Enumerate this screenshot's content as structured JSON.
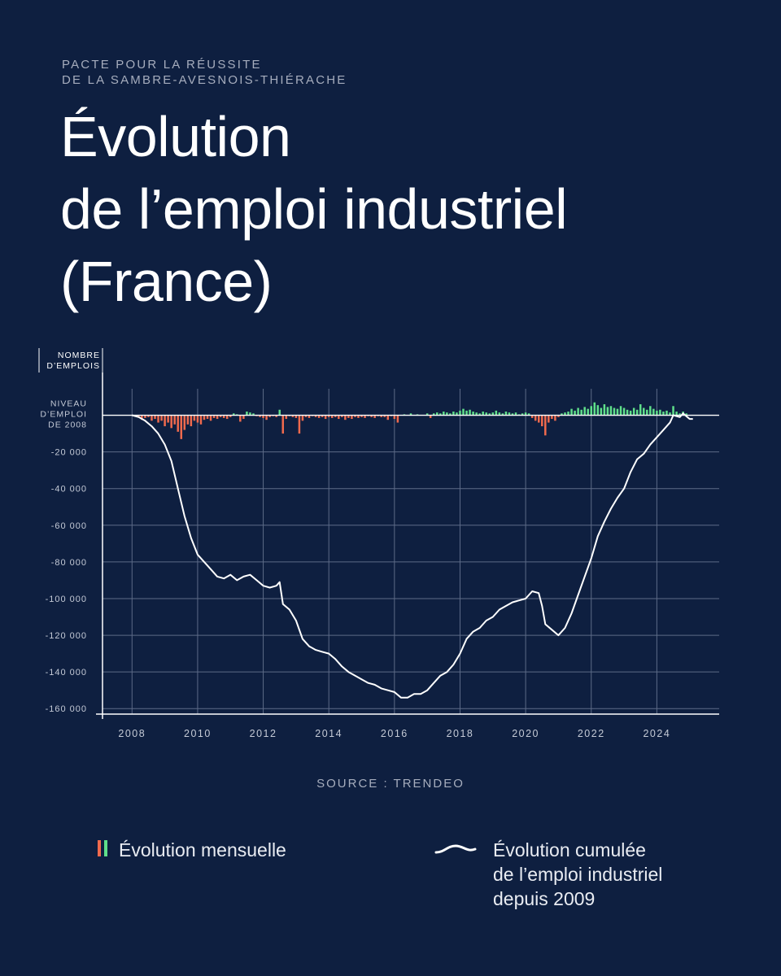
{
  "header": {
    "supertitle_lines": [
      "PACTE POUR LA RÉUSSITE",
      "DE LA SAMBRE-AVESNOIS-THIÉRACHE"
    ],
    "title_lines": [
      "Évolution",
      "de l’emploi industriel",
      "(France)"
    ]
  },
  "source": "SOURCE : TRENDEO",
  "legend": {
    "monthly": "Évolution mensuelle",
    "cumulative_lines": [
      "Évolution cumulée",
      "de l’emploi industriel",
      "depuis 2009"
    ]
  },
  "colors": {
    "background": "#0e1f40",
    "negative_bar": "#f06a4d",
    "positive_bar": "#5fdf8a",
    "line": "#ffffff",
    "grid": "#5d6b87",
    "muted_text": "#a6adbd"
  },
  "icons": {
    "monthly": "bar-pair-icon",
    "cumulative": "wave-line-icon"
  },
  "chart_data": {
    "type": "line+bar",
    "ylabel_lines": [
      "NOMBRE",
      "D’EMPLOIS"
    ],
    "zero_label_lines": [
      "NIVEAU",
      "D’EMPLOI",
      "DE 2008"
    ],
    "x_ticks": [
      "2008",
      "2010",
      "2012",
      "2014",
      "2016",
      "2018",
      "2020",
      "2022",
      "2024"
    ],
    "y_ticks": [
      "-20 000",
      "-40 000",
      "-60 000",
      "-80 000",
      "-100 000",
      "-120 000",
      "-140 000",
      "-160 000"
    ],
    "y_tick_values": [
      -20000,
      -40000,
      -60000,
      -80000,
      -100000,
      -120000,
      -140000,
      -160000
    ],
    "xlim": [
      2007.1,
      2025.9
    ],
    "ylim": [
      -163000,
      10000
    ],
    "grid": true,
    "series": [
      {
        "name": "Évolution cumulée de l’emploi industriel depuis 2009",
        "kind": "line",
        "points": [
          [
            2008.0,
            0
          ],
          [
            2008.2,
            -1000
          ],
          [
            2008.4,
            -3000
          ],
          [
            2008.6,
            -6000
          ],
          [
            2008.8,
            -10000
          ],
          [
            2009.0,
            -16000
          ],
          [
            2009.2,
            -25000
          ],
          [
            2009.4,
            -40000
          ],
          [
            2009.6,
            -55000
          ],
          [
            2009.8,
            -67000
          ],
          [
            2010.0,
            -76000
          ],
          [
            2010.2,
            -80000
          ],
          [
            2010.4,
            -84000
          ],
          [
            2010.6,
            -88000
          ],
          [
            2010.8,
            -89000
          ],
          [
            2011.0,
            -87000
          ],
          [
            2011.2,
            -90000
          ],
          [
            2011.4,
            -88000
          ],
          [
            2011.6,
            -87000
          ],
          [
            2011.8,
            -90000
          ],
          [
            2012.0,
            -93000
          ],
          [
            2012.2,
            -94000
          ],
          [
            2012.4,
            -93000
          ],
          [
            2012.5,
            -91000
          ],
          [
            2012.6,
            -103000
          ],
          [
            2012.8,
            -106000
          ],
          [
            2013.0,
            -112000
          ],
          [
            2013.2,
            -122000
          ],
          [
            2013.4,
            -126000
          ],
          [
            2013.6,
            -128000
          ],
          [
            2013.8,
            -129000
          ],
          [
            2014.0,
            -130000
          ],
          [
            2014.2,
            -133000
          ],
          [
            2014.4,
            -137000
          ],
          [
            2014.6,
            -140000
          ],
          [
            2014.8,
            -142000
          ],
          [
            2015.0,
            -144000
          ],
          [
            2015.2,
            -146000
          ],
          [
            2015.4,
            -147000
          ],
          [
            2015.6,
            -149000
          ],
          [
            2015.8,
            -150000
          ],
          [
            2016.0,
            -151000
          ],
          [
            2016.2,
            -154000
          ],
          [
            2016.4,
            -154000
          ],
          [
            2016.6,
            -152000
          ],
          [
            2016.8,
            -152000
          ],
          [
            2017.0,
            -150000
          ],
          [
            2017.2,
            -146000
          ],
          [
            2017.4,
            -142000
          ],
          [
            2017.6,
            -140000
          ],
          [
            2017.8,
            -136000
          ],
          [
            2018.0,
            -130000
          ],
          [
            2018.2,
            -122000
          ],
          [
            2018.4,
            -118000
          ],
          [
            2018.6,
            -116000
          ],
          [
            2018.8,
            -112000
          ],
          [
            2019.0,
            -110000
          ],
          [
            2019.2,
            -106000
          ],
          [
            2019.4,
            -104000
          ],
          [
            2019.6,
            -102000
          ],
          [
            2019.8,
            -101000
          ],
          [
            2020.0,
            -100000
          ],
          [
            2020.2,
            -96000
          ],
          [
            2020.4,
            -97000
          ],
          [
            2020.5,
            -104000
          ],
          [
            2020.6,
            -114000
          ],
          [
            2020.8,
            -117000
          ],
          [
            2021.0,
            -120000
          ],
          [
            2021.2,
            -116000
          ],
          [
            2021.4,
            -108000
          ],
          [
            2021.6,
            -98000
          ],
          [
            2021.8,
            -88000
          ],
          [
            2022.0,
            -78000
          ],
          [
            2022.2,
            -66000
          ],
          [
            2022.4,
            -58000
          ],
          [
            2022.6,
            -51000
          ],
          [
            2022.8,
            -45000
          ],
          [
            2023.0,
            -40000
          ],
          [
            2023.2,
            -31000
          ],
          [
            2023.4,
            -24000
          ],
          [
            2023.6,
            -21000
          ],
          [
            2023.8,
            -16000
          ],
          [
            2024.0,
            -12000
          ],
          [
            2024.2,
            -8000
          ],
          [
            2024.4,
            -4000
          ],
          [
            2024.5,
            0
          ],
          [
            2024.7,
            -1000
          ],
          [
            2024.8,
            1000
          ],
          [
            2025.0,
            -2000
          ],
          [
            2025.1,
            -2000
          ]
        ]
      },
      {
        "name": "Évolution mensuelle",
        "kind": "bar",
        "points": [
          [
            2008.2,
            -1000
          ],
          [
            2008.3,
            -2500
          ],
          [
            2008.4,
            -1500
          ],
          [
            2008.5,
            -1000
          ],
          [
            2008.6,
            -3000
          ],
          [
            2008.7,
            -2000
          ],
          [
            2008.8,
            -4000
          ],
          [
            2008.9,
            -3000
          ],
          [
            2009.0,
            -6000
          ],
          [
            2009.1,
            -4000
          ],
          [
            2009.2,
            -7000
          ],
          [
            2009.3,
            -5000
          ],
          [
            2009.4,
            -9000
          ],
          [
            2009.5,
            -13000
          ],
          [
            2009.6,
            -8000
          ],
          [
            2009.7,
            -5000
          ],
          [
            2009.8,
            -6000
          ],
          [
            2009.9,
            -3000
          ],
          [
            2010.0,
            -4000
          ],
          [
            2010.1,
            -5000
          ],
          [
            2010.2,
            -2500
          ],
          [
            2010.3,
            -2000
          ],
          [
            2010.4,
            -3000
          ],
          [
            2010.5,
            -1500
          ],
          [
            2010.6,
            -2000
          ],
          [
            2010.7,
            -1000
          ],
          [
            2010.8,
            -1500
          ],
          [
            2010.9,
            -2000
          ],
          [
            2011.0,
            -1000
          ],
          [
            2011.1,
            1000
          ],
          [
            2011.2,
            500
          ],
          [
            2011.3,
            -3500
          ],
          [
            2011.4,
            -2000
          ],
          [
            2011.5,
            2000
          ],
          [
            2011.6,
            1500
          ],
          [
            2011.7,
            1000
          ],
          [
            2011.8,
            -500
          ],
          [
            2011.9,
            -1000
          ],
          [
            2012.0,
            -1500
          ],
          [
            2012.1,
            -2500
          ],
          [
            2012.2,
            -1000
          ],
          [
            2012.3,
            -500
          ],
          [
            2012.4,
            -1000
          ],
          [
            2012.5,
            3000
          ],
          [
            2012.6,
            -10000
          ],
          [
            2012.7,
            -2000
          ],
          [
            2012.8,
            -500
          ],
          [
            2012.9,
            -1000
          ],
          [
            2013.0,
            -1500
          ],
          [
            2013.1,
            -10000
          ],
          [
            2013.2,
            -3000
          ],
          [
            2013.3,
            -1000
          ],
          [
            2013.4,
            -1500
          ],
          [
            2013.5,
            -500
          ],
          [
            2013.6,
            -1000
          ],
          [
            2013.7,
            -1500
          ],
          [
            2013.8,
            -1000
          ],
          [
            2013.9,
            -2000
          ],
          [
            2014.0,
            -1000
          ],
          [
            2014.1,
            -1500
          ],
          [
            2014.2,
            -1000
          ],
          [
            2014.3,
            -2000
          ],
          [
            2014.4,
            -1000
          ],
          [
            2014.5,
            -2500
          ],
          [
            2014.6,
            -1500
          ],
          [
            2014.7,
            -2000
          ],
          [
            2014.8,
            -1000
          ],
          [
            2014.9,
            -1500
          ],
          [
            2015.0,
            -1000
          ],
          [
            2015.1,
            -1500
          ],
          [
            2015.2,
            -500
          ],
          [
            2015.3,
            -1000
          ],
          [
            2015.4,
            -1500
          ],
          [
            2015.5,
            -500
          ],
          [
            2015.6,
            -1000
          ],
          [
            2015.7,
            -1000
          ],
          [
            2015.8,
            -2500
          ],
          [
            2015.9,
            -500
          ],
          [
            2016.0,
            -2000
          ],
          [
            2016.1,
            -4000
          ],
          [
            2016.3,
            500
          ],
          [
            2016.5,
            1000
          ],
          [
            2016.7,
            500
          ],
          [
            2017.0,
            1000
          ],
          [
            2017.1,
            -1500
          ],
          [
            2017.2,
            1000
          ],
          [
            2017.3,
            1500
          ],
          [
            2017.4,
            1000
          ],
          [
            2017.5,
            2000
          ],
          [
            2017.6,
            1500
          ],
          [
            2017.7,
            1000
          ],
          [
            2017.8,
            2000
          ],
          [
            2017.9,
            1500
          ],
          [
            2018.0,
            2500
          ],
          [
            2018.1,
            3500
          ],
          [
            2018.2,
            2500
          ],
          [
            2018.3,
            3000
          ],
          [
            2018.4,
            2000
          ],
          [
            2018.5,
            1500
          ],
          [
            2018.6,
            1000
          ],
          [
            2018.7,
            2000
          ],
          [
            2018.8,
            1500
          ],
          [
            2018.9,
            1000
          ],
          [
            2019.0,
            1500
          ],
          [
            2019.1,
            2500
          ],
          [
            2019.2,
            1500
          ],
          [
            2019.3,
            1000
          ],
          [
            2019.4,
            2000
          ],
          [
            2019.5,
            1500
          ],
          [
            2019.6,
            1000
          ],
          [
            2019.7,
            1500
          ],
          [
            2019.8,
            500
          ],
          [
            2019.9,
            1000
          ],
          [
            2020.0,
            1500
          ],
          [
            2020.1,
            1000
          ],
          [
            2020.2,
            -1500
          ],
          [
            2020.3,
            -3000
          ],
          [
            2020.4,
            -4000
          ],
          [
            2020.5,
            -6000
          ],
          [
            2020.6,
            -11000
          ],
          [
            2020.7,
            -4000
          ],
          [
            2020.8,
            -2000
          ],
          [
            2020.9,
            -3000
          ],
          [
            2021.0,
            -1000
          ],
          [
            2021.1,
            1000
          ],
          [
            2021.2,
            1500
          ],
          [
            2021.3,
            2000
          ],
          [
            2021.4,
            3500
          ],
          [
            2021.5,
            2500
          ],
          [
            2021.6,
            4000
          ],
          [
            2021.7,
            3000
          ],
          [
            2021.8,
            4500
          ],
          [
            2021.9,
            3500
          ],
          [
            2022.0,
            5000
          ],
          [
            2022.1,
            7000
          ],
          [
            2022.2,
            5500
          ],
          [
            2022.3,
            4000
          ],
          [
            2022.4,
            6000
          ],
          [
            2022.5,
            4500
          ],
          [
            2022.6,
            5000
          ],
          [
            2022.7,
            4000
          ],
          [
            2022.8,
            3500
          ],
          [
            2022.9,
            5000
          ],
          [
            2023.0,
            4000
          ],
          [
            2023.1,
            3000
          ],
          [
            2023.2,
            2500
          ],
          [
            2023.3,
            4000
          ],
          [
            2023.4,
            3000
          ],
          [
            2023.5,
            6000
          ],
          [
            2023.6,
            4000
          ],
          [
            2023.7,
            3000
          ],
          [
            2023.8,
            5000
          ],
          [
            2023.9,
            3500
          ],
          [
            2024.0,
            2500
          ],
          [
            2024.1,
            3000
          ],
          [
            2024.2,
            2000
          ],
          [
            2024.3,
            2500
          ],
          [
            2024.4,
            1500
          ],
          [
            2024.5,
            5000
          ],
          [
            2024.6,
            2000
          ],
          [
            2024.7,
            1000
          ],
          [
            2024.8,
            2000
          ],
          [
            2024.9,
            1000
          ]
        ]
      }
    ]
  }
}
